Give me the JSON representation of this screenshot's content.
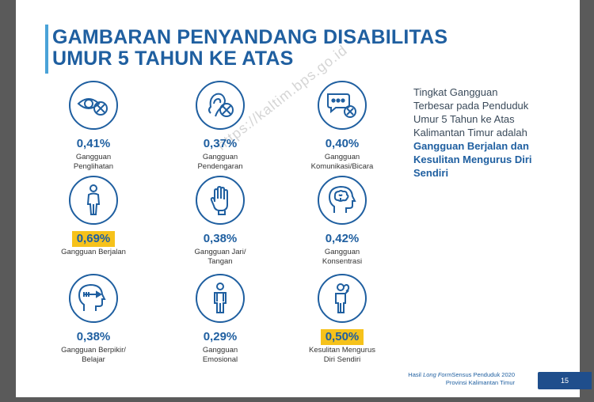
{
  "title": {
    "line1": "GAMBARAN PENYANDANG DISABILITAS",
    "line2": "UMUR 5 TAHUN KE ATAS"
  },
  "watermark": "https://kaltim.bps.go.id",
  "items": [
    {
      "icon": "eye-icon",
      "percent": "0,41%",
      "label_lines": [
        "Gangguan",
        "Penglihatan"
      ],
      "highlight": false
    },
    {
      "icon": "ear-icon",
      "percent": "0,37%",
      "label_lines": [
        "Gangguan",
        "Pendengaran"
      ],
      "highlight": false
    },
    {
      "icon": "speech-bubble-icon",
      "percent": "0,40%",
      "label_lines": [
        "Gangguan",
        "Komunikasi/Bicara"
      ],
      "highlight": false
    },
    {
      "icon": "walking-person-icon",
      "percent": "0,69%",
      "label_lines": [
        "Gangguan Berjalan"
      ],
      "highlight": true
    },
    {
      "icon": "hand-icon",
      "percent": "0,38%",
      "label_lines": [
        "Gangguan Jari/",
        "Tangan"
      ],
      "highlight": false
    },
    {
      "icon": "brain-head-icon",
      "percent": "0,42%",
      "label_lines": [
        "Gangguan",
        "Konsentrasi"
      ],
      "highlight": false
    },
    {
      "icon": "thinking-head-icon",
      "percent": "0,38%",
      "label_lines": [
        "Gangguan Berpikir/",
        "Belajar"
      ],
      "highlight": false
    },
    {
      "icon": "standing-person-icon",
      "percent": "0,29%",
      "label_lines": [
        "Gangguan",
        "Emosional"
      ],
      "highlight": false
    },
    {
      "icon": "self-care-person-icon",
      "percent": "0,50%",
      "label_lines": [
        "Kesulitan Mengurus",
        "Diri Sendiri"
      ],
      "highlight": true
    }
  ],
  "side_text": {
    "intro": "Tingkat Gangguan Terbesar pada Penduduk Umur 5 Tahun ke Atas Kalimantan Timur adalah",
    "bold": "Gangguan Berjalan dan Kesulitan Mengurus Diri Sendiri"
  },
  "footer": {
    "prefix": "Hasil",
    "italic": "Long Form",
    "rest": "Sensus Penduduk 2020",
    "line2": "Provinsi Kalimantan Timur"
  },
  "page_number": "15",
  "colors": {
    "primary": "#1f5fa0",
    "highlight": "#f6c21b",
    "accent_bar": "#4aa3d8",
    "footer_box": "#1f4e8c"
  }
}
